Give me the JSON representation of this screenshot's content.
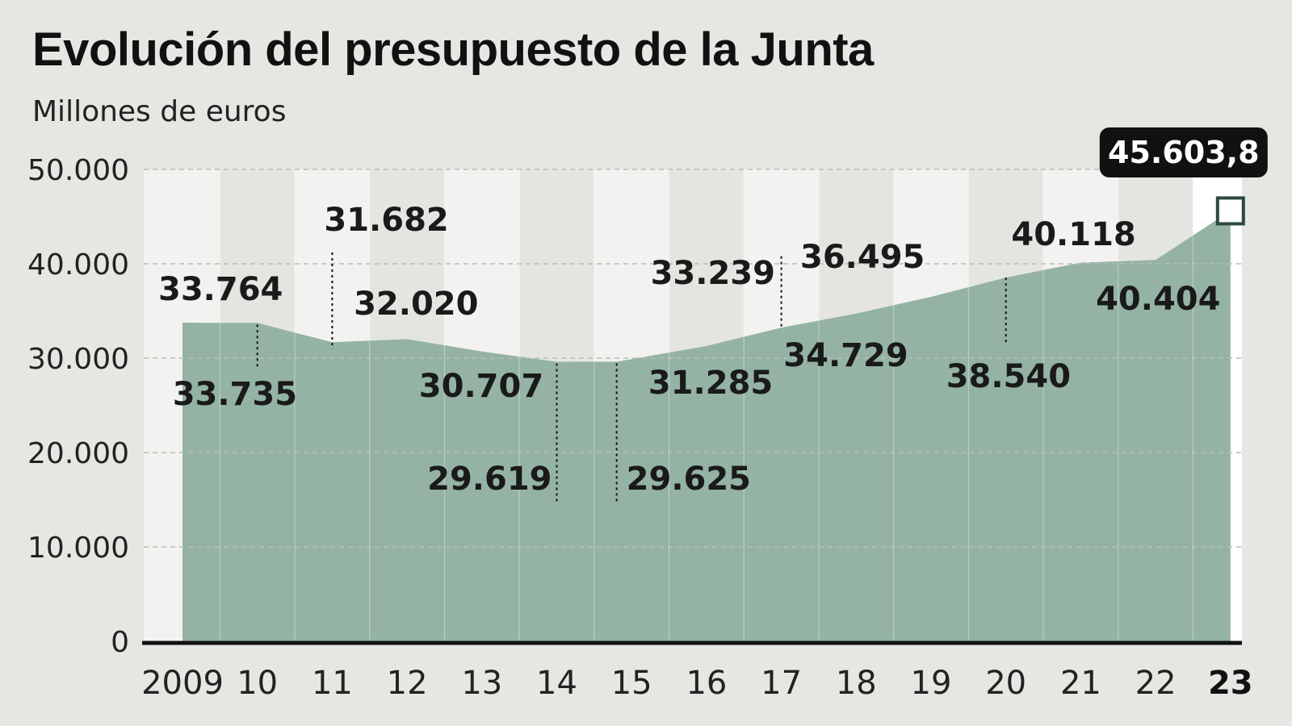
{
  "title": "Evolución del presupuesto de la Junta",
  "subtitle": "Millones de euros",
  "colors": {
    "background": "#e6e7e3",
    "area": "#94b3a4",
    "band_light": "#f2f2f0",
    "band_dark": "#e4e5e1",
    "highlight_box": "#111111",
    "marker": "#2b4a3c"
  },
  "chart_data": {
    "type": "area",
    "title": "Evolución del presupuesto de la Junta",
    "subtitle": "Millones de euros",
    "xlabel": "",
    "ylabel": "",
    "ylim": [
      0,
      50000
    ],
    "grid": true,
    "y_ticks": [
      0,
      10000,
      20000,
      30000,
      40000,
      50000
    ],
    "y_tick_labels": [
      "0",
      "10.000",
      "20.000",
      "30.000",
      "40.000",
      "50.000"
    ],
    "x_tick_labels": [
      "2009",
      "10",
      "11",
      "12",
      "13",
      "14",
      "15",
      "16",
      "17",
      "18",
      "19",
      "20",
      "21",
      "22",
      "23"
    ],
    "points": [
      {
        "x": 2009.0,
        "y": 33764,
        "label": "33.764"
      },
      {
        "x": 2010.0,
        "y": 33735,
        "label": "33.735"
      },
      {
        "x": 2011.0,
        "y": 31682,
        "label": "31.682"
      },
      {
        "x": 2012.0,
        "y": 32020,
        "label": "32.020"
      },
      {
        "x": 2013.0,
        "y": 30707,
        "label": "30.707"
      },
      {
        "x": 2014.0,
        "y": 29619,
        "label": "29.619"
      },
      {
        "x": 2014.8,
        "y": 29625,
        "label": "29.625"
      },
      {
        "x": 2016.0,
        "y": 31285,
        "label": "31.285"
      },
      {
        "x": 2017.0,
        "y": 33239,
        "label": "33.239"
      },
      {
        "x": 2018.0,
        "y": 34729,
        "label": "34.729"
      },
      {
        "x": 2019.0,
        "y": 36495,
        "label": "36.495"
      },
      {
        "x": 2020.0,
        "y": 38540,
        "label": "38.540"
      },
      {
        "x": 2021.0,
        "y": 40118,
        "label": "40.118"
      },
      {
        "x": 2022.0,
        "y": 40404,
        "label": "40.404"
      },
      {
        "x": 2023.0,
        "y": 45603.8,
        "label": "45.603,8",
        "highlight": true
      }
    ]
  }
}
